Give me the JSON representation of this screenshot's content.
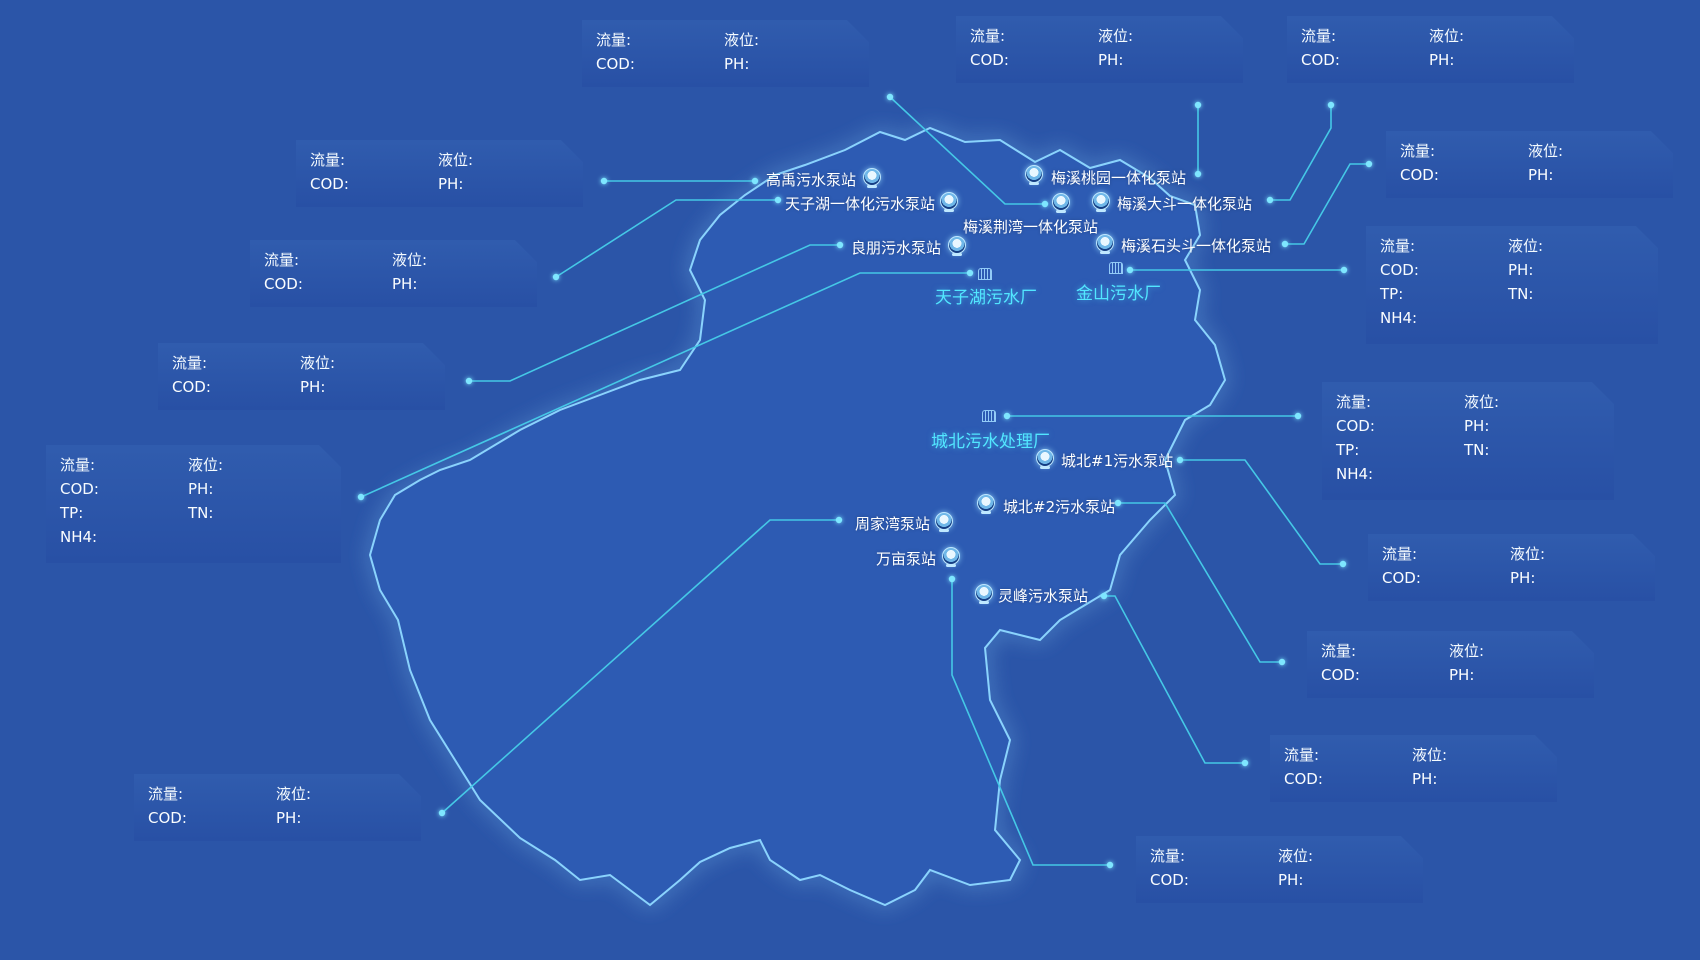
{
  "colors": {
    "background": "#2b55a8",
    "region_fill": "#2d5cb4",
    "region_glow": "#7ad0ff",
    "line": "#45c8e6",
    "plant_label": "#52e6ff"
  },
  "stations": [
    {
      "name": "高禹污水泵站",
      "kind": "pump"
    },
    {
      "name": "天子湖一体化污水泵站",
      "kind": "pump"
    },
    {
      "name": "良朋污水泵站",
      "kind": "pump"
    },
    {
      "name": "梅溪桃园一体化泵站",
      "kind": "pump"
    },
    {
      "name": "梅溪荆湾一体化泵站",
      "kind": "pump"
    },
    {
      "name": "梅溪大斗一体化泵站",
      "kind": "pump"
    },
    {
      "name": "梅溪石头斗一体化泵站",
      "kind": "pump"
    },
    {
      "name": "城北#1污水泵站",
      "kind": "pump"
    },
    {
      "name": "城北#2污水泵站",
      "kind": "pump"
    },
    {
      "name": "周家湾泵站",
      "kind": "pump"
    },
    {
      "name": "万亩泵站",
      "kind": "pump"
    },
    {
      "name": "灵峰污水泵站",
      "kind": "pump"
    }
  ],
  "plants": [
    {
      "name": "天子湖污水厂",
      "icon": "factory-icon"
    },
    {
      "name": "金山污水厂",
      "icon": "factory-icon"
    },
    {
      "name": "城北污水处理厂",
      "icon": "factory-icon"
    }
  ],
  "labels": {
    "flow": "流量:",
    "level": "液位:",
    "cod": "COD:",
    "ph": "PH:",
    "tp": "TP:",
    "tn": "TN:",
    "nh4": "NH4:"
  },
  "panels": [
    {
      "type": "pump"
    },
    {
      "type": "pump"
    },
    {
      "type": "pump"
    },
    {
      "type": "pump"
    },
    {
      "type": "pump"
    },
    {
      "type": "pump"
    },
    {
      "type": "pump"
    },
    {
      "type": "plant"
    },
    {
      "type": "plant"
    },
    {
      "type": "pump"
    },
    {
      "type": "pump"
    },
    {
      "type": "plant"
    },
    {
      "type": "pump"
    },
    {
      "type": "pump"
    },
    {
      "type": "pump"
    }
  ]
}
